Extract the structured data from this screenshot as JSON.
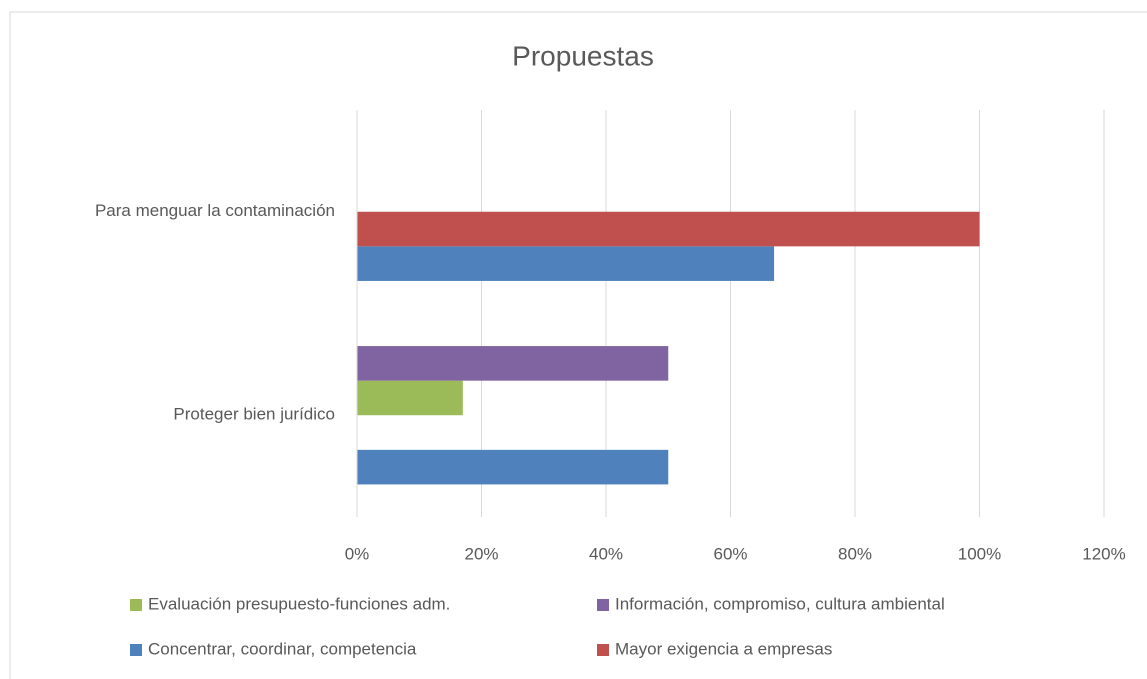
{
  "chart_data": {
    "type": "hbar",
    "title": "Propuestas",
    "categories": [
      "Proteger bien jurídico",
      "Para menguar la contaminación"
    ],
    "series": [
      {
        "name": "Concentrar, coordinar, competencia",
        "color": "#4f81bd",
        "values": [
          50,
          67
        ]
      },
      {
        "name": "Mayor exigencia a empresas",
        "color": "#c0504d",
        "values": [
          0,
          100
        ]
      },
      {
        "name": "Evaluación presupuesto-funciones adm.",
        "color": "#9bbb59",
        "values": [
          17,
          0
        ]
      },
      {
        "name": "Información, compromiso, cultura ambiental",
        "color": "#8064a2",
        "values": [
          50,
          0
        ]
      }
    ],
    "xlim": [
      0,
      120
    ],
    "xticks": [
      {
        "value": 0,
        "label": "0%"
      },
      {
        "value": 20,
        "label": "20%"
      },
      {
        "value": 40,
        "label": "40%"
      },
      {
        "value": 60,
        "label": "60%"
      },
      {
        "value": 80,
        "label": "80%"
      },
      {
        "value": 100,
        "label": "100%"
      },
      {
        "value": 120,
        "label": "120%"
      }
    ],
    "grid": true,
    "legend": "bottom"
  }
}
